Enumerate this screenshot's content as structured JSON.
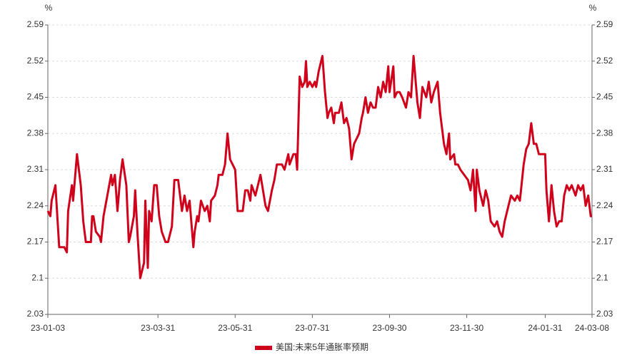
{
  "chart_data": {
    "type": "line",
    "y_unit": "%",
    "x": [
      "23-01-03",
      "23-01-05",
      "23-01-06",
      "23-01-09",
      "23-01-12",
      "23-01-16",
      "23-01-18",
      "23-01-19",
      "23-01-22",
      "23-01-23",
      "23-01-26",
      "23-01-29",
      "23-01-31",
      "23-02-02",
      "23-02-06",
      "23-02-07",
      "23-02-08",
      "23-02-10",
      "23-02-13",
      "23-02-14",
      "23-02-16",
      "23-02-19",
      "23-02-22",
      "23-02-23",
      "23-02-25",
      "23-02-27",
      "23-03-01",
      "23-03-03",
      "23-03-06",
      "23-03-08",
      "23-03-09",
      "23-03-12",
      "23-03-13",
      "23-03-15",
      "23-03-17",
      "23-03-20",
      "23-03-21",
      "23-03-23",
      "23-03-24",
      "23-03-26",
      "23-03-28",
      "23-03-30",
      "23-04-01",
      "23-04-03",
      "23-04-06",
      "23-04-08",
      "23-04-11",
      "23-04-13",
      "23-04-16",
      "23-04-19",
      "23-04-21",
      "23-04-23",
      "23-04-25",
      "23-04-28",
      "23-04-29",
      "23-05-01",
      "23-05-02",
      "23-05-04",
      "23-05-07",
      "23-05-09",
      "23-05-11",
      "23-05-12",
      "23-05-15",
      "23-05-17",
      "23-05-18",
      "23-05-21",
      "23-05-23",
      "23-05-25",
      "23-05-27",
      "23-05-29",
      "23-05-31",
      "23-06-02",
      "23-06-06",
      "23-06-08",
      "23-06-10",
      "23-06-12",
      "23-06-13",
      "23-06-16",
      "23-06-18",
      "23-06-20",
      "23-06-22",
      "23-06-24",
      "23-06-26",
      "23-06-29",
      "23-07-01",
      "23-07-03",
      "23-07-07",
      "23-07-09",
      "23-07-12",
      "23-07-13",
      "23-07-16",
      "23-07-18",
      "23-07-19",
      "23-07-21",
      "23-07-23",
      "23-07-25",
      "23-07-26",
      "23-07-27",
      "23-07-29",
      "23-07-31",
      "23-08-02",
      "23-08-03",
      "23-08-05",
      "23-08-08",
      "23-08-10",
      "23-08-12",
      "23-08-13",
      "23-08-15",
      "23-08-17",
      "23-08-18",
      "23-08-21",
      "23-08-23",
      "23-08-25",
      "23-08-27",
      "23-08-29",
      "23-08-31",
      "23-09-02",
      "23-09-04",
      "23-09-06",
      "23-09-08",
      "23-09-09",
      "23-09-11",
      "23-09-13",
      "23-09-15",
      "23-09-17",
      "23-09-19",
      "23-09-21",
      "23-09-23",
      "23-09-25",
      "23-09-27",
      "23-09-29",
      "23-09-30",
      "23-10-03",
      "23-10-04",
      "23-10-06",
      "23-10-08",
      "23-10-10",
      "23-10-13",
      "23-10-15",
      "23-10-17",
      "23-10-19",
      "23-10-21",
      "23-10-22",
      "23-10-24",
      "23-10-26",
      "23-10-29",
      "23-10-31",
      "23-11-02",
      "23-11-04",
      "23-11-07",
      "23-11-09",
      "23-11-12",
      "23-11-14",
      "23-11-16",
      "23-11-17",
      "23-11-20",
      "23-11-21",
      "23-11-23",
      "23-11-25",
      "23-11-28",
      "23-12-01",
      "23-12-03",
      "23-12-05",
      "23-12-07",
      "23-12-08",
      "23-12-10",
      "23-12-13",
      "23-12-15",
      "23-12-17",
      "23-12-19",
      "23-12-22",
      "23-12-24",
      "23-12-26",
      "23-12-28",
      "23-12-30",
      "24-01-02",
      "24-01-04",
      "24-01-07",
      "24-01-09",
      "24-01-11",
      "24-01-14",
      "24-01-16",
      "24-01-18",
      "24-01-20",
      "24-01-22",
      "24-01-24",
      "24-01-26",
      "24-01-28",
      "24-01-31",
      "24-02-01",
      "24-02-03",
      "24-02-05",
      "24-02-07",
      "24-02-09",
      "24-02-11",
      "24-02-13",
      "24-02-15",
      "24-02-17",
      "24-02-19",
      "24-02-21",
      "24-02-24",
      "24-02-26",
      "24-02-28",
      "24-03-01",
      "24-03-03",
      "24-03-05",
      "24-03-07",
      "24-03-08"
    ],
    "series": [
      {
        "name": "美国:未来5年通胀率预期",
        "color": "#d0021b",
        "values": [
          2.23,
          2.22,
          2.25,
          2.28,
          2.16,
          2.16,
          2.15,
          2.23,
          2.28,
          2.25,
          2.34,
          2.28,
          2.21,
          2.17,
          2.17,
          2.22,
          2.22,
          2.19,
          2.18,
          2.17,
          2.22,
          2.26,
          2.3,
          2.28,
          2.3,
          2.23,
          2.29,
          2.33,
          2.28,
          2.17,
          2.18,
          2.22,
          2.27,
          2.18,
          2.1,
          2.13,
          2.25,
          2.12,
          2.23,
          2.21,
          2.28,
          2.28,
          2.22,
          2.19,
          2.17,
          2.17,
          2.2,
          2.29,
          2.29,
          2.23,
          2.26,
          2.23,
          2.25,
          2.16,
          2.19,
          2.22,
          2.21,
          2.25,
          2.23,
          2.24,
          2.21,
          2.25,
          2.26,
          2.28,
          2.3,
          2.3,
          2.32,
          2.38,
          2.33,
          2.32,
          2.31,
          2.23,
          2.23,
          2.27,
          2.27,
          2.25,
          2.28,
          2.26,
          2.28,
          2.3,
          2.27,
          2.24,
          2.23,
          2.27,
          2.29,
          2.32,
          2.32,
          2.31,
          2.34,
          2.32,
          2.34,
          2.34,
          2.31,
          2.49,
          2.47,
          2.48,
          2.52,
          2.47,
          2.48,
          2.47,
          2.48,
          2.47,
          2.5,
          2.53,
          2.46,
          2.41,
          2.42,
          2.43,
          2.4,
          2.42,
          2.42,
          2.44,
          2.4,
          2.41,
          2.39,
          2.33,
          2.36,
          2.37,
          2.38,
          2.41,
          2.42,
          2.45,
          2.42,
          2.44,
          2.43,
          2.43,
          2.47,
          2.45,
          2.48,
          2.46,
          2.51,
          2.46,
          2.51,
          2.45,
          2.46,
          2.46,
          2.45,
          2.43,
          2.46,
          2.45,
          2.53,
          2.47,
          2.44,
          2.41,
          2.47,
          2.45,
          2.48,
          2.44,
          2.46,
          2.48,
          2.42,
          2.36,
          2.34,
          2.38,
          2.33,
          2.34,
          2.32,
          2.32,
          2.31,
          2.3,
          2.29,
          2.27,
          2.31,
          2.23,
          2.31,
          2.27,
          2.24,
          2.27,
          2.25,
          2.21,
          2.2,
          2.21,
          2.19,
          2.18,
          2.21,
          2.24,
          2.26,
          2.25,
          2.26,
          2.25,
          2.32,
          2.35,
          2.36,
          2.4,
          2.36,
          2.36,
          2.34,
          2.34,
          2.34,
          2.27,
          2.21,
          2.28,
          2.23,
          2.2,
          2.21,
          2.21,
          2.26,
          2.28,
          2.27,
          2.28,
          2.26,
          2.28,
          2.27,
          2.28,
          2.24,
          2.26,
          2.22,
          2.22
        ]
      }
    ],
    "xlim": [
      "23-01-03",
      "24-03-08"
    ],
    "xticks": [
      "23-01-03",
      "23-03-31",
      "23-05-31",
      "23-07-31",
      "23-09-30",
      "23-11-30",
      "24-01-31",
      "24-03-08"
    ],
    "ylim": [
      2.03,
      2.59
    ],
    "yticks": [
      2.03,
      2.1,
      2.17,
      2.24,
      2.31,
      2.38,
      2.45,
      2.52,
      2.59
    ],
    "grid": true,
    "legend": "bottom"
  }
}
